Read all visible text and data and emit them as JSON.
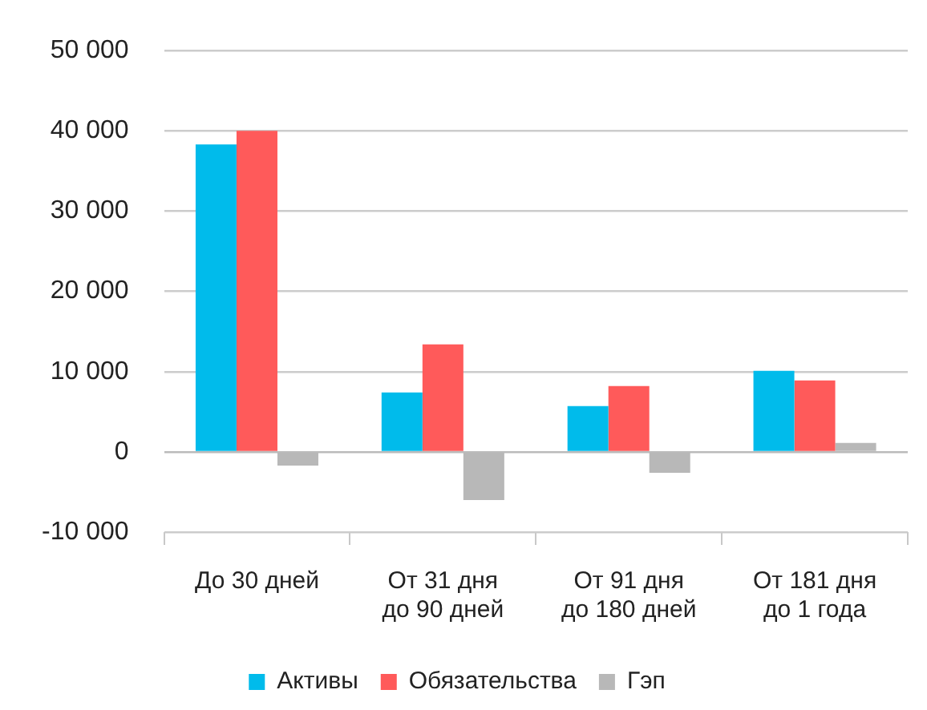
{
  "chart_data": {
    "type": "bar",
    "categories": [
      "До 30 дней",
      "От 31 дня\nдо 90 дней",
      "От 91 дня\nдо 180 дней",
      "От 181 дня\nдо 1 года"
    ],
    "series": [
      {
        "name": "Активы",
        "color": "#00bbeb",
        "values": [
          38300,
          7400,
          5700,
          10100
        ]
      },
      {
        "name": "Обязательства",
        "color": "#ff5a5a",
        "values": [
          40000,
          13400,
          8200,
          8900
        ]
      },
      {
        "name": "Гэп",
        "color": "#b8b8b8",
        "values": [
          -1700,
          -6000,
          -2600,
          1100
        ]
      }
    ],
    "ylim": [
      -10000,
      50000
    ],
    "yticks": [
      {
        "value": -10000,
        "label": "-10 000"
      },
      {
        "value": 0,
        "label": "0"
      },
      {
        "value": 10000,
        "label": "10 000"
      },
      {
        "value": 20000,
        "label": "20 000"
      },
      {
        "value": 30000,
        "label": "30 000"
      },
      {
        "value": 40000,
        "label": "40 000"
      },
      {
        "value": 50000,
        "label": "50 000"
      }
    ],
    "grid": "y",
    "legend": "bottom"
  }
}
